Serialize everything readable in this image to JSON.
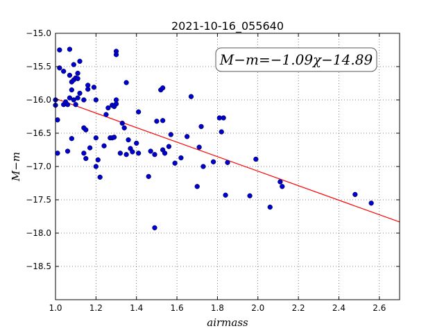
{
  "chart_data": {
    "type": "scatter",
    "title": "2021-10-16_055640",
    "xlabel": "airmass",
    "ylabel": "M−m",
    "xlim": [
      1.0,
      2.7
    ],
    "ylim": [
      -19.0,
      -15.0
    ],
    "xticks": [
      1.0,
      1.2,
      1.4,
      1.6,
      1.8,
      2.0,
      2.2,
      2.4,
      2.6
    ],
    "xtick_labels": [
      "1.0",
      "1.2",
      "1.4",
      "1.6",
      "1.8",
      "2.0",
      "2.2",
      "2.4",
      "2.6"
    ],
    "yticks": [
      -15.0,
      -15.5,
      -16.0,
      -16.5,
      -17.0,
      -17.5,
      -18.0,
      -18.5
    ],
    "ytick_labels": [
      "−15.0",
      "−15.5",
      "−16.0",
      "−16.5",
      "−17.0",
      "−17.5",
      "−18.0",
      "−18.5"
    ],
    "grid": true,
    "annotation": "M−m=−1.09χ−14.89",
    "fit": {
      "slope": -1.09,
      "intercept": -14.89,
      "color": "#ff0000"
    },
    "point_color": "#0000cc",
    "points": [
      [
        1.0,
        -16.0
      ],
      [
        1.0,
        -16.08
      ],
      [
        1.01,
        -16.8
      ],
      [
        1.01,
        -16.3
      ],
      [
        1.02,
        -15.52
      ],
      [
        1.02,
        -15.25
      ],
      [
        1.04,
        -15.57
      ],
      [
        1.04,
        -16.07
      ],
      [
        1.05,
        -16.03
      ],
      [
        1.06,
        -16.77
      ],
      [
        1.06,
        -16.07
      ],
      [
        1.07,
        -15.97
      ],
      [
        1.07,
        -15.63
      ],
      [
        1.07,
        -15.24
      ],
      [
        1.08,
        -15.73
      ],
      [
        1.08,
        -15.85
      ],
      [
        1.08,
        -16.58
      ],
      [
        1.09,
        -16.0
      ],
      [
        1.09,
        -15.7
      ],
      [
        1.09,
        -15.47
      ],
      [
        1.1,
        -16.07
      ],
      [
        1.1,
        -15.67
      ],
      [
        1.11,
        -15.97
      ],
      [
        1.11,
        -15.6
      ],
      [
        1.11,
        -15.68
      ],
      [
        1.12,
        -15.9
      ],
      [
        1.12,
        -15.42
      ],
      [
        1.14,
        -16.0
      ],
      [
        1.14,
        -16.42
      ],
      [
        1.14,
        -16.8
      ],
      [
        1.15,
        -16.45
      ],
      [
        1.15,
        -16.88
      ],
      [
        1.16,
        -15.78
      ],
      [
        1.16,
        -15.84
      ],
      [
        1.17,
        -16.72
      ],
      [
        1.19,
        -15.81
      ],
      [
        1.2,
        -16.0
      ],
      [
        1.2,
        -16.57
      ],
      [
        1.2,
        -17.0
      ],
      [
        1.21,
        -16.9
      ],
      [
        1.22,
        -17.16
      ],
      [
        1.24,
        -16.69
      ],
      [
        1.25,
        -16.22
      ],
      [
        1.26,
        -16.12
      ],
      [
        1.27,
        -16.57
      ],
      [
        1.28,
        -16.08
      ],
      [
        1.28,
        -16.57
      ],
      [
        1.29,
        -16.56
      ],
      [
        1.29,
        -16.1
      ],
      [
        1.3,
        -16.0
      ],
      [
        1.3,
        -16.06
      ],
      [
        1.3,
        -15.27
      ],
      [
        1.3,
        -15.32
      ],
      [
        1.32,
        -16.8
      ],
      [
        1.33,
        -16.35
      ],
      [
        1.34,
        -16.42
      ],
      [
        1.35,
        -15.74
      ],
      [
        1.35,
        -16.82
      ],
      [
        1.36,
        -16.6
      ],
      [
        1.37,
        -16.73
      ],
      [
        1.38,
        -16.78
      ],
      [
        1.4,
        -16.65
      ],
      [
        1.41,
        -16.8
      ],
      [
        1.41,
        -16.18
      ],
      [
        1.46,
        -17.15
      ],
      [
        1.47,
        -16.77
      ],
      [
        1.49,
        -16.82
      ],
      [
        1.49,
        -17.92
      ],
      [
        1.5,
        -16.32
      ],
      [
        1.52,
        -15.85
      ],
      [
        1.53,
        -15.82
      ],
      [
        1.53,
        -16.31
      ],
      [
        1.53,
        -16.75
      ],
      [
        1.54,
        -16.8
      ],
      [
        1.56,
        -16.7
      ],
      [
        1.57,
        -16.52
      ],
      [
        1.59,
        -16.95
      ],
      [
        1.62,
        -16.87
      ],
      [
        1.65,
        -16.55
      ],
      [
        1.67,
        -15.95
      ],
      [
        1.7,
        -17.3
      ],
      [
        1.71,
        -16.71
      ],
      [
        1.72,
        -16.4
      ],
      [
        1.73,
        -17.0
      ],
      [
        1.78,
        -16.93
      ],
      [
        1.81,
        -16.27
      ],
      [
        1.82,
        -16.48
      ],
      [
        1.83,
        -16.27
      ],
      [
        1.84,
        -17.43
      ],
      [
        1.85,
        -16.94
      ],
      [
        1.96,
        -17.44
      ],
      [
        1.99,
        -16.89
      ],
      [
        2.06,
        -17.61
      ],
      [
        2.11,
        -17.23
      ],
      [
        2.12,
        -17.3
      ],
      [
        2.48,
        -17.42
      ],
      [
        2.56,
        -17.55
      ]
    ]
  }
}
